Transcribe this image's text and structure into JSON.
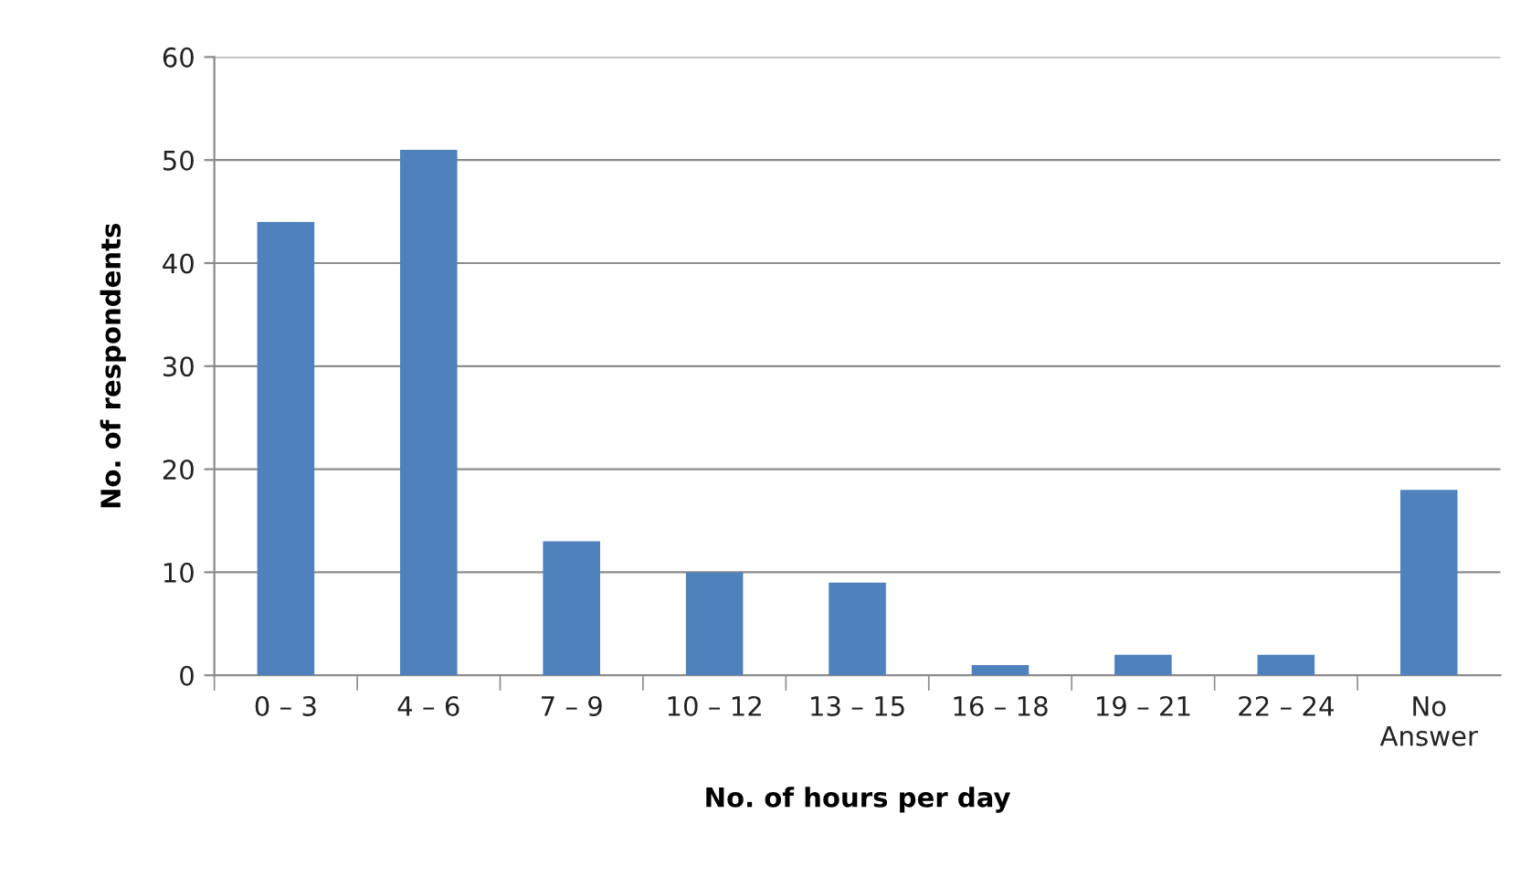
{
  "chart_data": {
    "type": "bar",
    "xlabel": "No. of hours per day",
    "ylabel": "No. of respondents",
    "categories": [
      "0 – 3",
      "4 – 6",
      "7 – 9",
      "10 – 12",
      "13 – 15",
      "16 – 18",
      "19 – 21",
      "22 – 24",
      "No\nAnswer"
    ],
    "values": [
      44,
      51,
      13,
      10,
      9,
      1,
      2,
      2,
      18
    ],
    "color": "#4f81bd",
    "ylim": [
      0,
      60
    ],
    "yticks": [
      0,
      10,
      20,
      30,
      40,
      50,
      60
    ],
    "grid": "y",
    "legend": false
  }
}
